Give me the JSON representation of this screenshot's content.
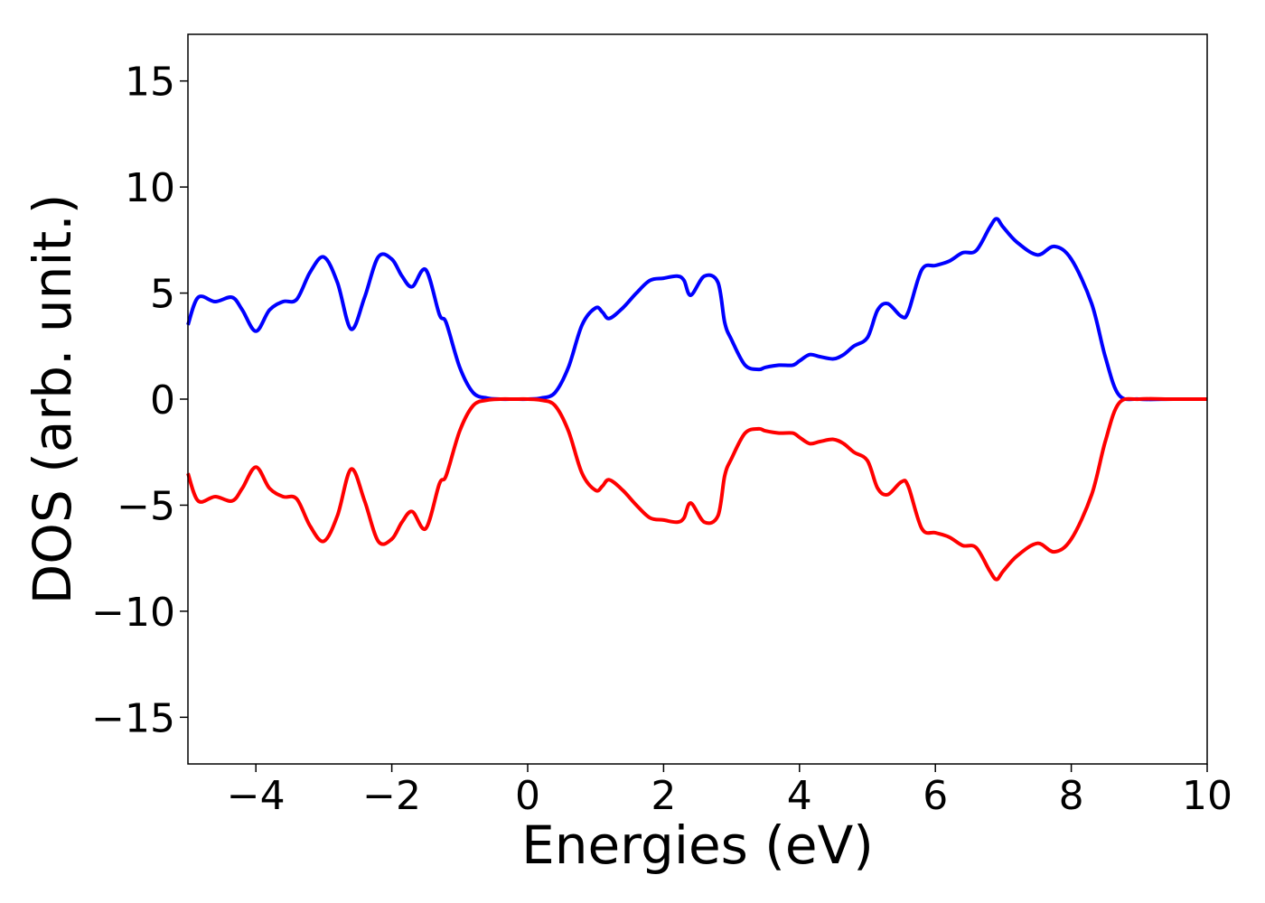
{
  "chart_data": {
    "type": "line",
    "title": "",
    "xlabel": "Energies (eV)",
    "ylabel": "DOS (arb. unit.)",
    "xlim": [
      -5,
      10
    ],
    "ylim": [
      -17.2,
      17.2
    ],
    "xticks": [
      -4,
      -2,
      0,
      2,
      4,
      6,
      8,
      10
    ],
    "xtick_labels": [
      "−4",
      "−2",
      "0",
      "2",
      "4",
      "6",
      "8",
      "10"
    ],
    "yticks": [
      15,
      10,
      5,
      0,
      -5,
      -10,
      -15
    ],
    "ytick_labels": [
      "15",
      "10",
      "5",
      "0",
      "−5",
      "−10",
      "−15"
    ],
    "grid": false,
    "legend": "none",
    "series": [
      {
        "color": "#0000ff",
        "x": [
          -5.0,
          -4.85,
          -4.6,
          -4.35,
          -4.2,
          -4.0,
          -3.8,
          -3.6,
          -3.4,
          -3.2,
          -3.0,
          -2.8,
          -2.6,
          -2.4,
          -2.2,
          -2.0,
          -1.85,
          -1.7,
          -1.5,
          -1.3,
          -1.2,
          -1.0,
          -0.8,
          -0.6,
          -0.4,
          -0.2,
          0.0,
          0.2,
          0.4,
          0.6,
          0.8,
          1.0,
          1.1,
          1.2,
          1.4,
          1.6,
          1.8,
          2.0,
          2.2,
          2.3,
          2.4,
          2.6,
          2.8,
          2.9,
          3.0,
          3.2,
          3.4,
          3.5,
          3.7,
          3.9,
          4.0,
          4.15,
          4.3,
          4.5,
          4.65,
          4.8,
          5.0,
          5.15,
          5.3,
          5.5,
          5.6,
          5.8,
          6.0,
          6.2,
          6.4,
          6.6,
          6.8,
          6.9,
          7.0,
          7.2,
          7.5,
          7.75,
          8.0,
          8.3,
          8.5,
          8.7,
          9.0,
          9.5,
          10.0
        ],
        "y": [
          3.5,
          4.8,
          4.6,
          4.8,
          4.2,
          3.2,
          4.2,
          4.6,
          4.7,
          6.0,
          6.7,
          5.5,
          3.3,
          4.8,
          6.7,
          6.6,
          5.8,
          5.3,
          6.1,
          4.0,
          3.6,
          1.5,
          0.3,
          0.05,
          0.0,
          0.0,
          0.0,
          0.05,
          0.3,
          1.5,
          3.5,
          4.3,
          4.1,
          3.8,
          4.3,
          5.0,
          5.6,
          5.7,
          5.8,
          5.6,
          4.9,
          5.8,
          5.5,
          3.6,
          2.8,
          1.6,
          1.4,
          1.5,
          1.6,
          1.6,
          1.8,
          2.1,
          2.0,
          1.9,
          2.1,
          2.5,
          2.9,
          4.2,
          4.5,
          3.9,
          4.1,
          6.1,
          6.3,
          6.5,
          6.9,
          7.0,
          8.1,
          8.5,
          8.1,
          7.4,
          6.8,
          7.2,
          6.6,
          4.5,
          2.0,
          0.2,
          0.0,
          0.0,
          0.0
        ]
      },
      {
        "color": "#ff0000",
        "x": [
          -5.0,
          -4.85,
          -4.6,
          -4.35,
          -4.2,
          -4.0,
          -3.8,
          -3.6,
          -3.4,
          -3.2,
          -3.0,
          -2.8,
          -2.6,
          -2.4,
          -2.2,
          -2.0,
          -1.85,
          -1.7,
          -1.5,
          -1.3,
          -1.2,
          -1.0,
          -0.8,
          -0.6,
          -0.4,
          -0.2,
          0.0,
          0.2,
          0.4,
          0.6,
          0.8,
          1.0,
          1.1,
          1.2,
          1.4,
          1.6,
          1.8,
          2.0,
          2.2,
          2.3,
          2.4,
          2.6,
          2.8,
          2.9,
          3.0,
          3.2,
          3.4,
          3.5,
          3.7,
          3.9,
          4.0,
          4.15,
          4.3,
          4.5,
          4.65,
          4.8,
          5.0,
          5.15,
          5.3,
          5.5,
          5.6,
          5.8,
          6.0,
          6.2,
          6.4,
          6.6,
          6.8,
          6.9,
          7.0,
          7.2,
          7.5,
          7.75,
          8.0,
          8.3,
          8.5,
          8.7,
          9.0,
          9.5,
          10.0
        ],
        "y": [
          -3.5,
          -4.8,
          -4.6,
          -4.8,
          -4.2,
          -3.2,
          -4.2,
          -4.6,
          -4.7,
          -6.0,
          -6.7,
          -5.5,
          -3.3,
          -4.8,
          -6.7,
          -6.6,
          -5.8,
          -5.3,
          -6.1,
          -4.0,
          -3.6,
          -1.5,
          -0.3,
          -0.05,
          0.0,
          0.0,
          0.0,
          -0.05,
          -0.3,
          -1.5,
          -3.5,
          -4.3,
          -4.1,
          -3.8,
          -4.3,
          -5.0,
          -5.6,
          -5.7,
          -5.8,
          -5.6,
          -4.9,
          -5.8,
          -5.5,
          -3.6,
          -2.8,
          -1.6,
          -1.4,
          -1.5,
          -1.6,
          -1.6,
          -1.8,
          -2.1,
          -2.0,
          -1.9,
          -2.1,
          -2.5,
          -2.9,
          -4.2,
          -4.5,
          -3.9,
          -4.1,
          -6.1,
          -6.3,
          -6.5,
          -6.9,
          -7.0,
          -8.1,
          -8.5,
          -8.1,
          -7.4,
          -6.8,
          -7.2,
          -6.6,
          -4.5,
          -2.0,
          -0.2,
          0.0,
          0.0,
          0.0
        ]
      }
    ]
  }
}
